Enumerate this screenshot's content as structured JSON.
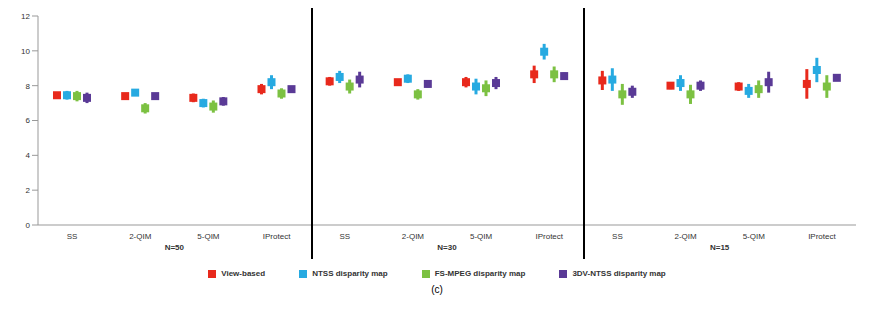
{
  "chart_data": {
    "type": "scatter",
    "marker": "square",
    "caption": "(c)",
    "categories": [
      "SS",
      "2-QIM",
      "5-QIM",
      "IProtect",
      "SS",
      "2-QIM",
      "5-QIM",
      "IProtect",
      "SS",
      "2-QIM",
      "5-QIM",
      "IProtect"
    ],
    "groups": [
      "N=50",
      "N=30",
      "N=15"
    ],
    "ylim": [
      0,
      12
    ],
    "yticks": [
      0,
      2,
      4,
      6,
      8,
      10,
      12
    ],
    "grid": false,
    "legend": "bottom",
    "series": [
      {
        "name": "View-based",
        "color": "#e8291c",
        "values": [
          7.45,
          7.4,
          7.3,
          7.8,
          8.25,
          8.2,
          8.2,
          8.65,
          8.3,
          8.0,
          7.95,
          8.1
        ],
        "errors": [
          0.15,
          0.1,
          0.25,
          0.3,
          0.25,
          0.15,
          0.3,
          0.5,
          0.55,
          0.2,
          0.25,
          0.85
        ]
      },
      {
        "name": "NTSS disparity map",
        "color": "#27aae1",
        "values": [
          7.45,
          7.6,
          7.0,
          8.2,
          8.5,
          8.4,
          7.95,
          9.95,
          8.35,
          8.15,
          7.7,
          8.9
        ],
        "errors": [
          0.25,
          0.15,
          0.25,
          0.4,
          0.35,
          0.25,
          0.45,
          0.45,
          0.65,
          0.45,
          0.4,
          0.7
        ]
      },
      {
        "name": "FS-MPEG disparity map",
        "color": "#7cc142",
        "values": [
          7.4,
          6.7,
          6.8,
          7.55,
          7.95,
          7.5,
          7.85,
          8.65,
          7.5,
          7.5,
          7.8,
          7.95
        ],
        "errors": [
          0.3,
          0.3,
          0.35,
          0.3,
          0.4,
          0.3,
          0.45,
          0.45,
          0.6,
          0.55,
          0.5,
          0.65
        ]
      },
      {
        "name": "3DV-NTSS disparity map",
        "color": "#5a3a96",
        "values": [
          7.3,
          7.4,
          7.1,
          7.8,
          8.35,
          8.1,
          8.15,
          8.55,
          7.65,
          8.0,
          8.2,
          8.45
        ],
        "errors": [
          0.3,
          0.1,
          0.25,
          0.1,
          0.45,
          0.2,
          0.35,
          0.2,
          0.35,
          0.3,
          0.6,
          0.1
        ]
      }
    ]
  }
}
